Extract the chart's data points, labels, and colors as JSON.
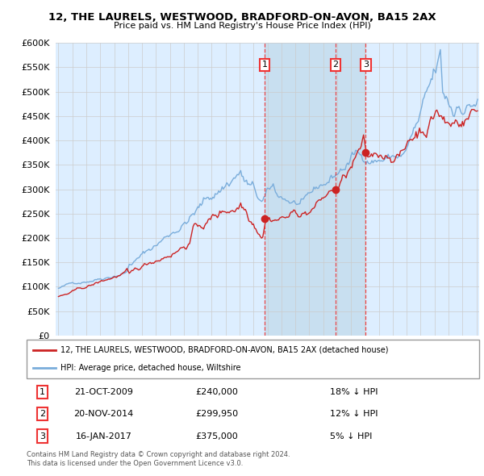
{
  "title": "12, THE LAURELS, WESTWOOD, BRADFORD-ON-AVON, BA15 2AX",
  "subtitle": "Price paid vs. HM Land Registry's House Price Index (HPI)",
  "hpi_color": "#7aaddb",
  "price_color": "#cc2222",
  "vline_color": "#ee3333",
  "grid_color": "#cccccc",
  "bg_color": "#ddeeff",
  "bg_fill_color": "#c8dff0",
  "ylim": [
    0,
    600000
  ],
  "xlim": [
    1994.8,
    2025.2
  ],
  "yticks": [
    0,
    50000,
    100000,
    150000,
    200000,
    250000,
    300000,
    350000,
    400000,
    450000,
    500000,
    550000,
    600000
  ],
  "sales": [
    {
      "year": 2009.8,
      "price": 240000,
      "label": "1",
      "date": "21-OCT-2009",
      "hpi_pct": "18% ↓ HPI"
    },
    {
      "year": 2014.9,
      "price": 299950,
      "label": "2",
      "date": "20-NOV-2014",
      "hpi_pct": "12% ↓ HPI"
    },
    {
      "year": 2017.05,
      "price": 375000,
      "label": "3",
      "date": "16-JAN-2017",
      "hpi_pct": "5% ↓ HPI"
    }
  ],
  "legend_label_price": "12, THE LAURELS, WESTWOOD, BRADFORD-ON-AVON, BA15 2AX (detached house)",
  "legend_label_hpi": "HPI: Average price, detached house, Wiltshire",
  "footer": "Contains HM Land Registry data © Crown copyright and database right 2024.\nThis data is licensed under the Open Government Licence v3.0."
}
